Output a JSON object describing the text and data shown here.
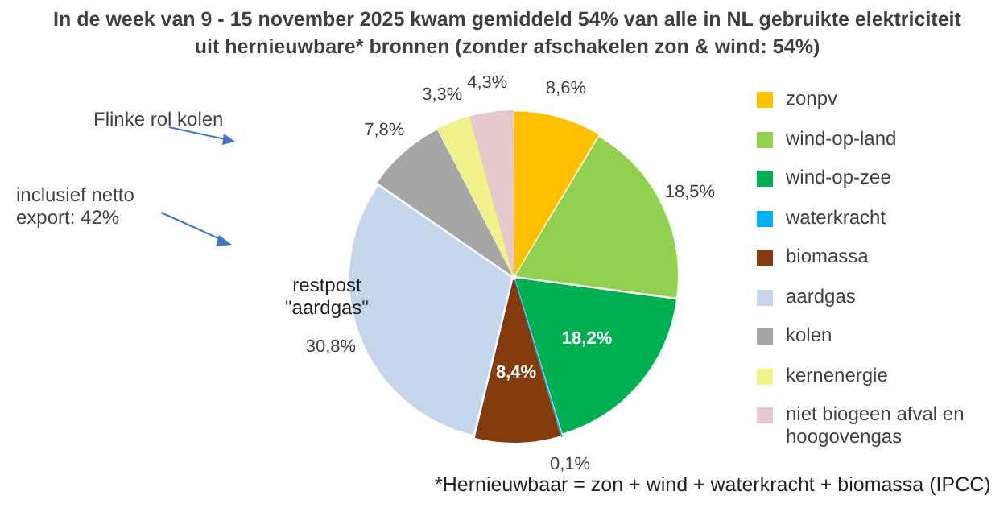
{
  "chart_data": {
    "type": "pie",
    "title": "In de week van 9 - 15 november 2025 kwam gemiddeld 54% van alle in NL gebruikte elektriciteit uit hernieuwbare* bronnen  (zonder afschakelen zon & wind: 54%)",
    "categories": [
      "zonpv",
      "wind-op-land",
      "wind-op-zee",
      "waterkracht",
      "biomassa",
      "aardgas",
      "kolen",
      "kernenergie",
      "niet biogeen afval en hoogovengas"
    ],
    "values": [
      8.6,
      18.5,
      18.2,
      0.1,
      8.4,
      30.8,
      7.8,
      3.3,
      4.3
    ],
    "value_labels": [
      "8,6%",
      "18,5%",
      "18,2%",
      "0,1%",
      "8,4%",
      "30,8%",
      "7,8%",
      "3,3%",
      "4,3%"
    ],
    "colors": [
      "#ffc000",
      "#92d050",
      "#00b050",
      "#00b0f0",
      "#843c0c",
      "#c5d5ea",
      "#a6a6a6",
      "#f2f28c",
      "#e6c9cc"
    ],
    "legend": "right",
    "annotations": [
      "Flinke rol kolen",
      "inclusief netto export: 42%",
      "restpost \"aardgas\"",
      "*Hernieuwbaar = zon + wind + waterkracht + biomassa (IPCC)"
    ]
  }
}
